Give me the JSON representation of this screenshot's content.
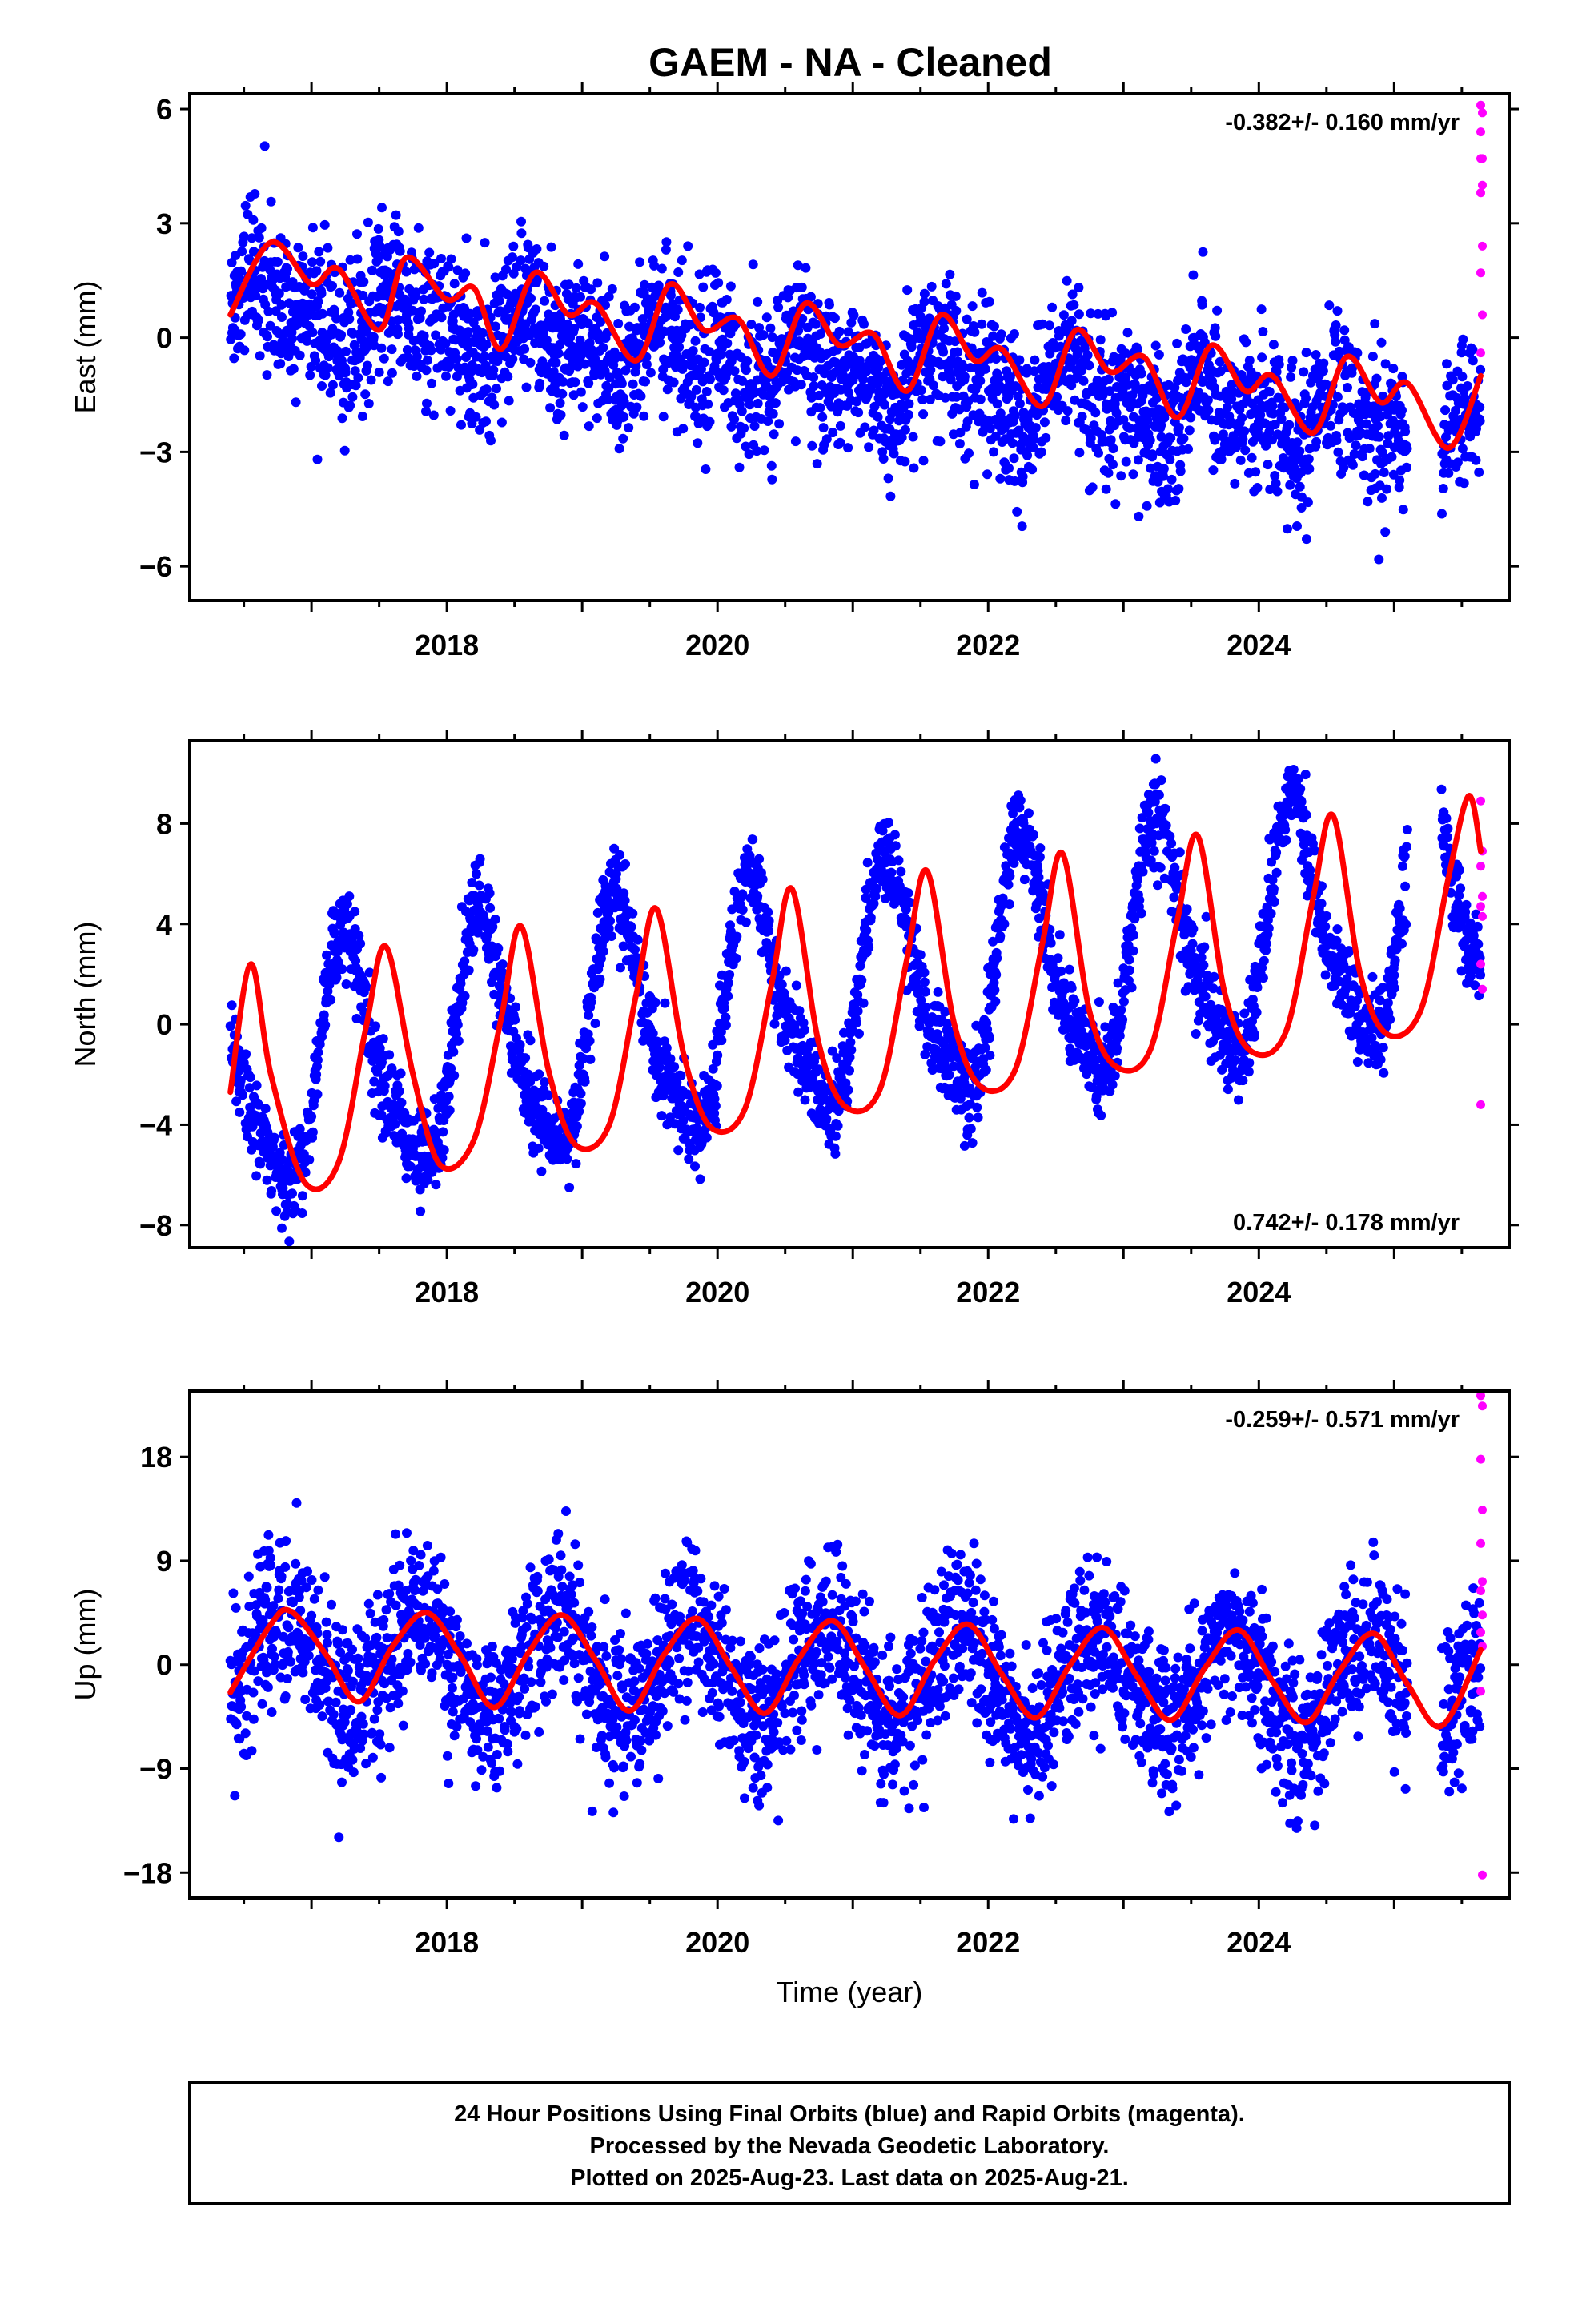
{
  "title": "GAEM  - NA - Cleaned",
  "colors": {
    "final_orbits": "#0000ff",
    "rapid_orbits": "#ff00ff",
    "model_fit": "#ff0000",
    "frame": "#000000"
  },
  "footer": {
    "line1": "24 Hour Positions Using Final Orbits (blue) and Rapid Orbits (magenta).",
    "line2": "Processed by the Nevada Geodetic Laboratory.",
    "line3": "Plotted on 2025-Aug-23. Last data on 2025-Aug-21."
  },
  "chart_data": [
    {
      "type": "scatter",
      "panel": "east",
      "ylabel": "East (mm)",
      "xlabel": "",
      "rate_text": "-0.382+/- 0.160 mm/yr",
      "rate_position": "top-right",
      "xlim": [
        2016.1,
        2025.85
      ],
      "ylim": [
        -6.9,
        6.4
      ],
      "xticks": [
        2018,
        2020,
        2022,
        2024
      ],
      "xtick_labels": [
        "2018",
        "2020",
        "2022",
        "2024"
      ],
      "yticks": [
        -6,
        -3,
        0,
        3,
        6
      ],
      "ytick_labels": [
        "−6",
        "−3",
        "0",
        "3",
        "6"
      ],
      "data_start": 2016.4,
      "data_end": 2025.64,
      "gap": [
        2025.1,
        2025.35
      ],
      "model": {
        "offset": 0.9,
        "trend_mm_per_yr": -0.382,
        "ref_year": 2016.4,
        "annual_amp": 0.55,
        "annual_phase": 0.65,
        "semiannual_amp": 0.5,
        "semiannual_phase": 0.55
      },
      "scatter_sd": 1.0,
      "rapid_points": [
        6.1,
        5.9,
        5.4,
        4.7,
        4.7,
        4.0,
        3.8,
        2.4,
        1.7,
        0.6,
        -0.4
      ],
      "fit_points": [
        [
          2016.4,
          0.6
        ],
        [
          2016.7,
          2.5
        ],
        [
          2017.0,
          1.4
        ],
        [
          2017.2,
          1.8
        ],
        [
          2017.5,
          0.2
        ],
        [
          2017.7,
          2.1
        ],
        [
          2018.0,
          1.0
        ],
        [
          2018.2,
          1.3
        ],
        [
          2018.4,
          -0.3
        ],
        [
          2018.65,
          1.7
        ],
        [
          2018.9,
          0.6
        ],
        [
          2019.1,
          0.9
        ],
        [
          2019.4,
          -0.6
        ],
        [
          2019.65,
          1.4
        ],
        [
          2019.9,
          0.2
        ],
        [
          2020.15,
          0.5
        ],
        [
          2020.4,
          -1.0
        ],
        [
          2020.65,
          0.9
        ],
        [
          2020.9,
          -0.2
        ],
        [
          2021.15,
          0.1
        ],
        [
          2021.4,
          -1.4
        ],
        [
          2021.65,
          0.6
        ],
        [
          2021.9,
          -0.6
        ],
        [
          2022.1,
          -0.3
        ],
        [
          2022.4,
          -1.8
        ],
        [
          2022.65,
          0.2
        ],
        [
          2022.9,
          -0.9
        ],
        [
          2023.15,
          -0.5
        ],
        [
          2023.4,
          -2.1
        ],
        [
          2023.65,
          -0.2
        ],
        [
          2023.9,
          -1.4
        ],
        [
          2024.1,
          -1.0
        ],
        [
          2024.4,
          -2.5
        ],
        [
          2024.65,
          -0.5
        ],
        [
          2024.9,
          -1.7
        ],
        [
          2025.1,
          -1.2
        ],
        [
          2025.4,
          -2.9
        ],
        [
          2025.64,
          -1.0
        ]
      ]
    },
    {
      "type": "scatter",
      "panel": "north",
      "ylabel": "North (mm)",
      "xlabel": "",
      "rate_text": "0.742+/- 0.178 mm/yr",
      "rate_position": "bottom-right",
      "xlim": [
        2016.1,
        2025.85
      ],
      "ylim": [
        -8.9,
        11.3
      ],
      "xticks": [
        2018,
        2020,
        2022,
        2024
      ],
      "xtick_labels": [
        "2018",
        "2020",
        "2022",
        "2024"
      ],
      "yticks": [
        -8,
        -4,
        0,
        4,
        8
      ],
      "ytick_labels": [
        "−8",
        "−4",
        "0",
        "4",
        "8"
      ],
      "data_start": 2016.4,
      "data_end": 2025.64,
      "gap": [
        2025.1,
        2025.35
      ],
      "model": {
        "offset": -2.3,
        "trend_mm_per_yr": 0.742,
        "ref_year": 2016.4,
        "annual_amp": 4.6,
        "annual_phase": 0.27,
        "semiannual_amp": 1.1,
        "semiannual_phase": 0.2
      },
      "scatter_sd": 0.9,
      "rapid_points": [
        8.9,
        6.9,
        6.3,
        5.1,
        4.7,
        4.3,
        2.4,
        1.4,
        -3.2
      ],
      "fit_points": [
        [
          2016.4,
          -2.7
        ],
        [
          2016.55,
          2.4
        ],
        [
          2016.7,
          -2.0
        ],
        [
          2016.95,
          -6.3
        ],
        [
          2017.2,
          -5.5
        ],
        [
          2017.4,
          -0.2
        ],
        [
          2017.55,
          3.1
        ],
        [
          2017.75,
          -2.0
        ],
        [
          2017.95,
          -5.6
        ],
        [
          2018.2,
          -4.6
        ],
        [
          2018.4,
          0.2
        ],
        [
          2018.55,
          3.9
        ],
        [
          2018.75,
          -1.8
        ],
        [
          2018.95,
          -4.8
        ],
        [
          2019.2,
          -4.0
        ],
        [
          2019.4,
          1.2
        ],
        [
          2019.55,
          4.6
        ],
        [
          2019.75,
          -1.2
        ],
        [
          2019.95,
          -4.1
        ],
        [
          2020.2,
          -3.4
        ],
        [
          2020.4,
          1.6
        ],
        [
          2020.55,
          5.4
        ],
        [
          2020.75,
          -0.8
        ],
        [
          2020.95,
          -3.3
        ],
        [
          2021.2,
          -2.6
        ],
        [
          2021.4,
          2.6
        ],
        [
          2021.55,
          6.1
        ],
        [
          2021.75,
          0.0
        ],
        [
          2021.95,
          -2.5
        ],
        [
          2022.2,
          -1.8
        ],
        [
          2022.4,
          3.2
        ],
        [
          2022.55,
          6.8
        ],
        [
          2022.75,
          0.5
        ],
        [
          2022.95,
          -1.7
        ],
        [
          2023.2,
          -1.0
        ],
        [
          2023.4,
          4.2
        ],
        [
          2023.55,
          7.5
        ],
        [
          2023.75,
          1.2
        ],
        [
          2023.95,
          -1.1
        ],
        [
          2024.2,
          -0.3
        ],
        [
          2024.4,
          5.0
        ],
        [
          2024.55,
          8.3
        ],
        [
          2024.75,
          2.0
        ],
        [
          2024.95,
          -0.4
        ],
        [
          2025.2,
          0.6
        ],
        [
          2025.4,
          5.8
        ],
        [
          2025.55,
          9.1
        ],
        [
          2025.64,
          6.9
        ]
      ]
    },
    {
      "type": "scatter",
      "panel": "up",
      "ylabel": "Up (mm)",
      "xlabel": "Time (year)",
      "rate_text": "-0.259+/- 0.571 mm/yr",
      "rate_position": "top-right",
      "xlim": [
        2016.1,
        2025.85
      ],
      "ylim": [
        -20.2,
        23.7
      ],
      "xticks": [
        2018,
        2020,
        2022,
        2024
      ],
      "xtick_labels": [
        "2018",
        "2020",
        "2022",
        "2024"
      ],
      "yticks": [
        -18,
        -9,
        0,
        9,
        18
      ],
      "ytick_labels": [
        "−18",
        "−9",
        "0",
        "9",
        "18"
      ],
      "data_start": 2016.4,
      "data_end": 2025.64,
      "gap": [
        2025.1,
        2025.35
      ],
      "model": {
        "offset": 0.4,
        "trend_mm_per_yr": -0.259,
        "ref_year": 2016.4,
        "annual_amp": 4.0,
        "annual_phase": 0.79,
        "semiannual_amp": 0.0,
        "semiannual_phase": 0.0
      },
      "scatter_sd": 3.5,
      "rapid_points": [
        23.3,
        22.4,
        17.8,
        13.4,
        10.5,
        7.2,
        6.4,
        4.3,
        2.8,
        1.6,
        -2.3,
        -18.2
      ],
      "fit_points": [
        [
          2016.4,
          -2.4
        ],
        [
          2016.7,
          3.5
        ],
        [
          2016.85,
          4.6
        ],
        [
          2017.1,
          1.0
        ],
        [
          2017.35,
          -3.2
        ],
        [
          2017.6,
          1.6
        ],
        [
          2017.85,
          4.5
        ],
        [
          2018.1,
          0.8
        ],
        [
          2018.35,
          -3.7
        ],
        [
          2018.6,
          1.0
        ],
        [
          2018.85,
          4.3
        ],
        [
          2019.1,
          0.4
        ],
        [
          2019.35,
          -4.0
        ],
        [
          2019.6,
          0.8
        ],
        [
          2019.85,
          4.0
        ],
        [
          2020.1,
          -0.2
        ],
        [
          2020.35,
          -4.2
        ],
        [
          2020.6,
          0.5
        ],
        [
          2020.85,
          3.8
        ],
        [
          2021.1,
          -0.4
        ],
        [
          2021.35,
          -4.4
        ],
        [
          2021.6,
          0.3
        ],
        [
          2021.85,
          3.5
        ],
        [
          2022.1,
          -0.8
        ],
        [
          2022.35,
          -4.6
        ],
        [
          2022.6,
          -0.1
        ],
        [
          2022.85,
          3.2
        ],
        [
          2023.1,
          -1.0
        ],
        [
          2023.35,
          -4.8
        ],
        [
          2023.6,
          -0.3
        ],
        [
          2023.85,
          3.0
        ],
        [
          2024.1,
          -1.4
        ],
        [
          2024.35,
          -5.0
        ],
        [
          2024.6,
          -0.5
        ],
        [
          2024.85,
          2.7
        ],
        [
          2025.1,
          -1.7
        ],
        [
          2025.35,
          -5.3
        ],
        [
          2025.64,
          1.3
        ]
      ]
    }
  ]
}
